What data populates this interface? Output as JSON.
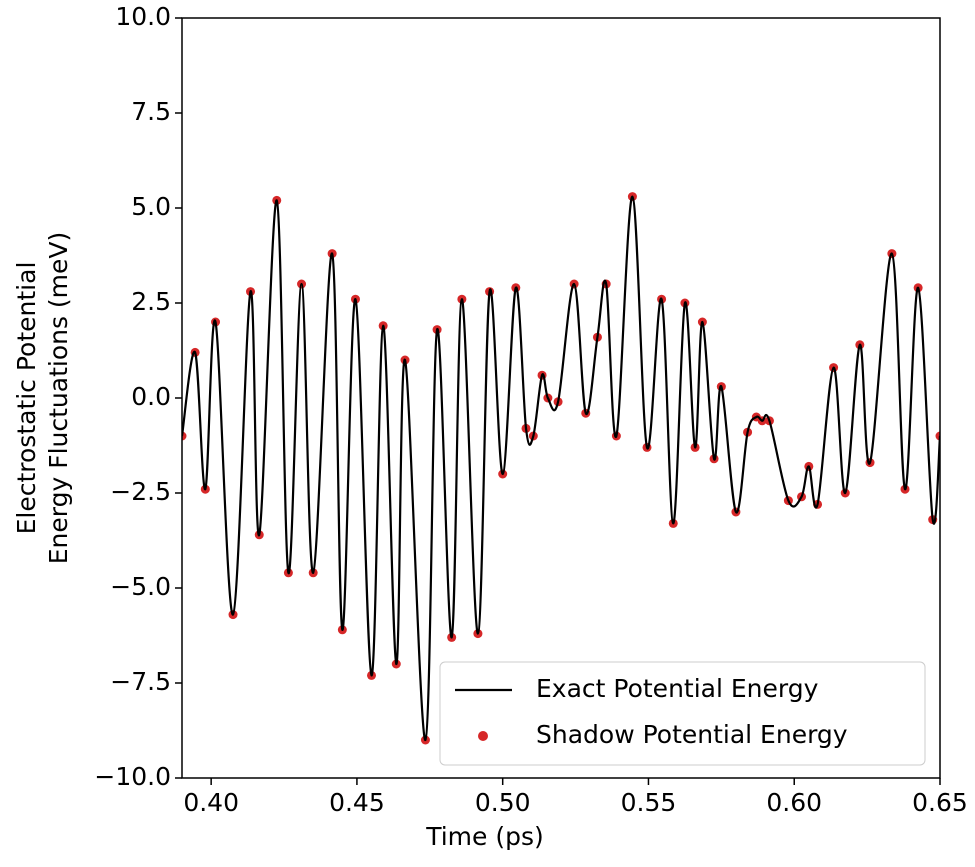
{
  "chart_data": {
    "type": "line+scatter",
    "xlabel": "Time (ps)",
    "ylabel": [
      "Electrostatic Potential",
      "Energy Fluctuations (meV)"
    ],
    "xlim": [
      0.39,
      0.65
    ],
    "ylim": [
      -10,
      10
    ],
    "xticks": [
      {
        "value": 0.4,
        "label": "0.40"
      },
      {
        "value": 0.45,
        "label": "0.45"
      },
      {
        "value": 0.5,
        "label": "0.50"
      },
      {
        "value": 0.55,
        "label": "0.55"
      },
      {
        "value": 0.6,
        "label": "0.60"
      },
      {
        "value": 0.65,
        "label": "0.65"
      }
    ],
    "yticks": [
      {
        "value": -10,
        "label": "−10.0"
      },
      {
        "value": -7.5,
        "label": "−7.5"
      },
      {
        "value": -5,
        "label": "−5.0"
      },
      {
        "value": -2.5,
        "label": "−2.5"
      },
      {
        "value": 0,
        "label": "0.0"
      },
      {
        "value": 2.5,
        "label": "2.5"
      },
      {
        "value": 5,
        "label": "5.0"
      },
      {
        "value": 7.5,
        "label": "7.5"
      },
      {
        "value": 10,
        "label": "10.0"
      }
    ],
    "legend": "lower right",
    "x": [
      0.39,
      0.3945,
      0.398,
      0.4015,
      0.4075,
      0.4135,
      0.4165,
      0.4225,
      0.4265,
      0.431,
      0.435,
      0.4415,
      0.445,
      0.4495,
      0.455,
      0.459,
      0.4635,
      0.4665,
      0.4735,
      0.4775,
      0.4825,
      0.486,
      0.4915,
      0.4955,
      0.5,
      0.5045,
      0.508,
      0.5105,
      0.5135,
      0.5155,
      0.519,
      0.5245,
      0.5285,
      0.5325,
      0.5355,
      0.539,
      0.5445,
      0.5495,
      0.5545,
      0.5585,
      0.5625,
      0.566,
      0.5685,
      0.5725,
      0.575,
      0.58,
      0.584,
      0.587,
      0.589,
      0.5915,
      0.598,
      0.6025,
      0.605,
      0.608,
      0.6135,
      0.6175,
      0.6225,
      0.626,
      0.6335,
      0.638,
      0.6425,
      0.6475,
      0.65
    ],
    "series": [
      {
        "name": "Exact Potential Energy",
        "color": "#000000",
        "kind": "line",
        "values": [
          -1.0,
          1.2,
          -2.4,
          2.0,
          -5.7,
          2.8,
          -3.6,
          5.2,
          -4.6,
          3.0,
          -4.6,
          3.8,
          -6.1,
          2.6,
          -7.3,
          1.9,
          -7.0,
          1.0,
          -9.0,
          1.8,
          -6.3,
          2.6,
          -6.2,
          2.8,
          -2.0,
          2.9,
          -0.8,
          -1.0,
          0.6,
          0.0,
          -0.1,
          3.0,
          -0.4,
          1.6,
          3.0,
          -1.0,
          5.3,
          -1.3,
          2.6,
          -3.3,
          2.5,
          -1.3,
          2.0,
          -1.6,
          0.3,
          -3.0,
          -0.9,
          -0.5,
          -0.6,
          -0.6,
          -2.7,
          -2.6,
          -1.8,
          -2.8,
          0.8,
          -2.5,
          1.4,
          -1.7,
          3.8,
          -2.4,
          2.9,
          -3.2,
          -1.0
        ]
      },
      {
        "name": "Shadow Potential Energy",
        "color": "#d62728",
        "kind": "scatter",
        "values": [
          -1.0,
          1.2,
          -2.4,
          2.0,
          -5.7,
          2.8,
          -3.6,
          5.2,
          -4.6,
          3.0,
          -4.6,
          3.8,
          -6.1,
          2.6,
          -7.3,
          1.9,
          -7.0,
          1.0,
          -9.0,
          1.8,
          -6.3,
          2.6,
          -6.2,
          2.8,
          -2.0,
          2.9,
          -0.8,
          -1.0,
          0.6,
          0.0,
          -0.1,
          3.0,
          -0.4,
          1.6,
          3.0,
          -1.0,
          5.3,
          -1.3,
          2.6,
          -3.3,
          2.5,
          -1.3,
          2.0,
          -1.6,
          0.3,
          -3.0,
          -0.9,
          -0.5,
          -0.6,
          -0.6,
          -2.7,
          -2.6,
          -1.8,
          -2.8,
          0.8,
          -2.5,
          1.4,
          -1.7,
          3.8,
          -2.4,
          2.9,
          -3.2,
          -1.0
        ]
      }
    ]
  }
}
